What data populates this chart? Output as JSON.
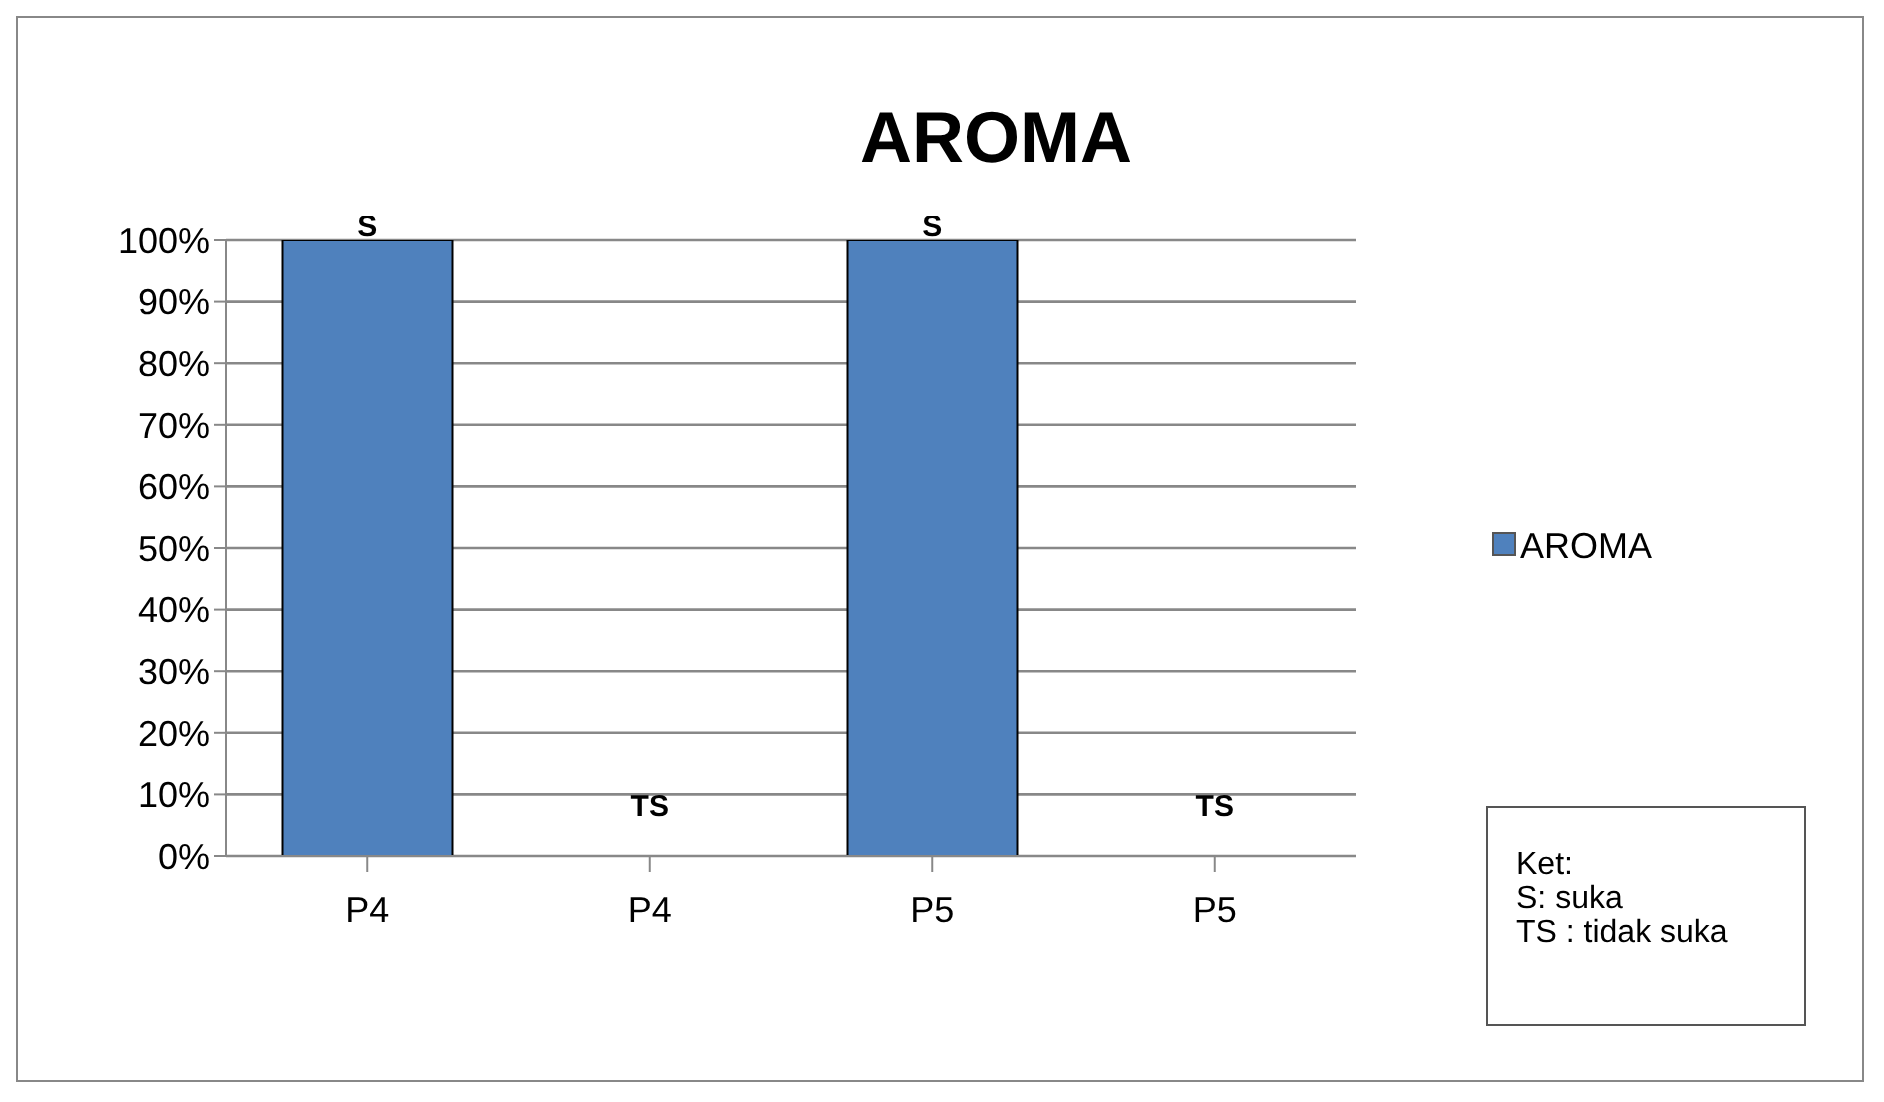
{
  "chart_data": {
    "type": "bar",
    "title": "AROMA",
    "categories": [
      "P4",
      "P4",
      "P5",
      "P5"
    ],
    "series": [
      {
        "name": "AROMA",
        "color": "#4f81bd",
        "values": [
          100,
          0,
          100,
          0
        ],
        "value_labels": [
          "S",
          "TS",
          "S",
          "TS"
        ]
      }
    ],
    "ylim": [
      0,
      100
    ],
    "yticks": [
      {
        "value": 0,
        "label": "0%"
      },
      {
        "value": 10,
        "label": "10%"
      },
      {
        "value": 20,
        "label": "20%"
      },
      {
        "value": 30,
        "label": "30%"
      },
      {
        "value": 40,
        "label": "40%"
      },
      {
        "value": 50,
        "label": "50%"
      },
      {
        "value": 60,
        "label": "60%"
      },
      {
        "value": 70,
        "label": "70%"
      },
      {
        "value": 80,
        "label": "80%"
      },
      {
        "value": 90,
        "label": "90%"
      },
      {
        "value": 100,
        "label": "100%"
      }
    ],
    "grid": "y",
    "legend": "right",
    "annotations": [
      "Ket:",
      "S: suka",
      "TS : tidak suka"
    ]
  }
}
